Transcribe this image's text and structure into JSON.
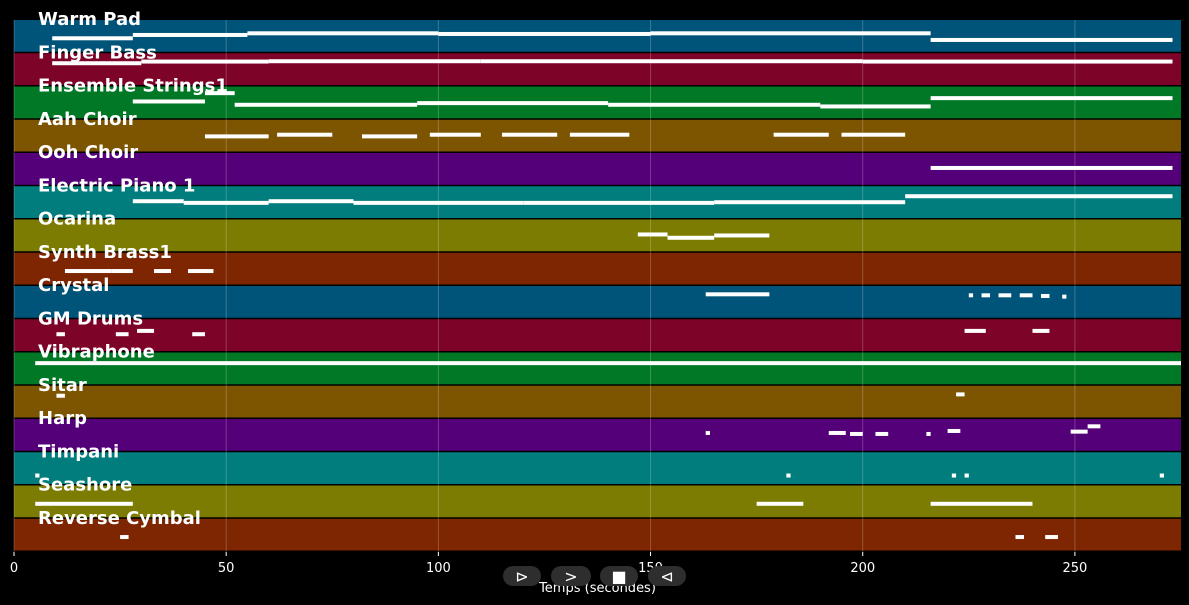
{
  "chart_data": {
    "type": "piano-roll",
    "xlabel": "Temps (secondes)",
    "xlim": [
      0,
      275
    ],
    "xticks": [
      0,
      50,
      100,
      150,
      200,
      250
    ],
    "grid": true,
    "tracks": [
      {
        "name": "Warm Pad",
        "color": "#015479",
        "notes": [
          [
            9,
            28,
            0.55
          ],
          [
            28,
            55,
            0.45
          ],
          [
            55,
            100,
            0.4
          ],
          [
            100,
            150,
            0.42
          ],
          [
            150,
            216,
            0.4
          ],
          [
            216,
            273,
            0.6
          ]
        ]
      },
      {
        "name": "Finger Bass",
        "color": "#7d0329",
        "notes": [
          [
            9,
            30,
            0.3
          ],
          [
            30,
            60,
            0.25
          ],
          [
            60,
            110,
            0.24
          ],
          [
            110,
            160,
            0.24
          ],
          [
            160,
            200,
            0.24
          ],
          [
            200,
            273,
            0.25
          ]
        ]
      },
      {
        "name": "Ensemble Strings1",
        "color": "#017825",
        "notes": [
          [
            28,
            45,
            0.45
          ],
          [
            45,
            52,
            0.2
          ],
          [
            52,
            95,
            0.55
          ],
          [
            95,
            140,
            0.5
          ],
          [
            140,
            190,
            0.55
          ],
          [
            190,
            216,
            0.6
          ],
          [
            216,
            273,
            0.35
          ]
        ]
      },
      {
        "name": "Aah Choir",
        "color": "#7d5501",
        "notes": [
          [
            45,
            60,
            0.5
          ],
          [
            62,
            75,
            0.45
          ],
          [
            82,
            95,
            0.5
          ],
          [
            98,
            110,
            0.45
          ],
          [
            115,
            128,
            0.45
          ],
          [
            131,
            145,
            0.45
          ],
          [
            179,
            192,
            0.45
          ],
          [
            195,
            210,
            0.45
          ]
        ]
      },
      {
        "name": "Ooh Choir",
        "color": "#540079",
        "notes": [
          [
            216,
            273,
            0.45
          ]
        ]
      },
      {
        "name": "Electric Piano 1",
        "color": "#007d7c",
        "notes": [
          [
            28,
            40,
            0.45
          ],
          [
            40,
            60,
            0.5
          ],
          [
            60,
            80,
            0.45
          ],
          [
            80,
            120,
            0.5
          ],
          [
            120,
            165,
            0.5
          ],
          [
            165,
            210,
            0.48
          ],
          [
            210,
            273,
            0.3
          ]
        ]
      },
      {
        "name": "Ocarina",
        "color": "#7b7c01",
        "notes": [
          [
            147,
            154,
            0.45
          ],
          [
            154,
            165,
            0.55
          ],
          [
            165,
            178,
            0.48
          ]
        ]
      },
      {
        "name": "Synth Brass1",
        "color": "#7d2601",
        "notes": [
          [
            12,
            23,
            0.55
          ],
          [
            23,
            28,
            0.55
          ],
          [
            33,
            37,
            0.55
          ],
          [
            41,
            47,
            0.55
          ]
        ]
      },
      {
        "name": "Crystal",
        "color": "#015479",
        "notes": [
          [
            163,
            178,
            0.25
          ],
          [
            225,
            226,
            0.28
          ],
          [
            228,
            230,
            0.28
          ],
          [
            232,
            235,
            0.28
          ],
          [
            237,
            240,
            0.28
          ],
          [
            242,
            244,
            0.3
          ],
          [
            247,
            248,
            0.32
          ]
        ]
      },
      {
        "name": "GM Drums",
        "color": "#7d0329",
        "notes": [
          [
            10,
            12,
            0.45
          ],
          [
            24,
            27,
            0.45
          ],
          [
            29,
            33,
            0.35
          ],
          [
            42,
            45,
            0.45
          ],
          [
            224,
            229,
            0.35
          ],
          [
            240,
            244,
            0.35
          ]
        ]
      },
      {
        "name": "Vibraphone",
        "color": "#017825",
        "notes": [
          [
            5,
            275,
            0.32
          ]
        ]
      },
      {
        "name": "Sitar",
        "color": "#7d5501",
        "notes": [
          [
            10,
            12,
            0.3
          ],
          [
            222,
            224,
            0.26
          ]
        ]
      },
      {
        "name": "Harp",
        "color": "#540079",
        "notes": [
          [
            163,
            164,
            0.42
          ],
          [
            192,
            196,
            0.42
          ],
          [
            197,
            200,
            0.45
          ],
          [
            203,
            206,
            0.45
          ],
          [
            215,
            216,
            0.45
          ],
          [
            220,
            223,
            0.36
          ],
          [
            249,
            253,
            0.38
          ],
          [
            253,
            256,
            0.22
          ]
        ]
      },
      {
        "name": "Timpani",
        "color": "#007d7c",
        "notes": [
          [
            5,
            6,
            0.7
          ],
          [
            182,
            183,
            0.7
          ],
          [
            221,
            222,
            0.7
          ],
          [
            224,
            225,
            0.7
          ],
          [
            270,
            271,
            0.7
          ]
        ]
      },
      {
        "name": "Seashore",
        "color": "#7b7c01",
        "notes": [
          [
            5,
            28,
            0.55
          ],
          [
            175,
            186,
            0.55
          ],
          [
            216,
            240,
            0.55
          ]
        ]
      },
      {
        "name": "Reverse Cymbal",
        "color": "#7d2601",
        "notes": [
          [
            25,
            27,
            0.55
          ],
          [
            236,
            238,
            0.55
          ],
          [
            243,
            246,
            0.55
          ]
        ]
      }
    ]
  }
}
